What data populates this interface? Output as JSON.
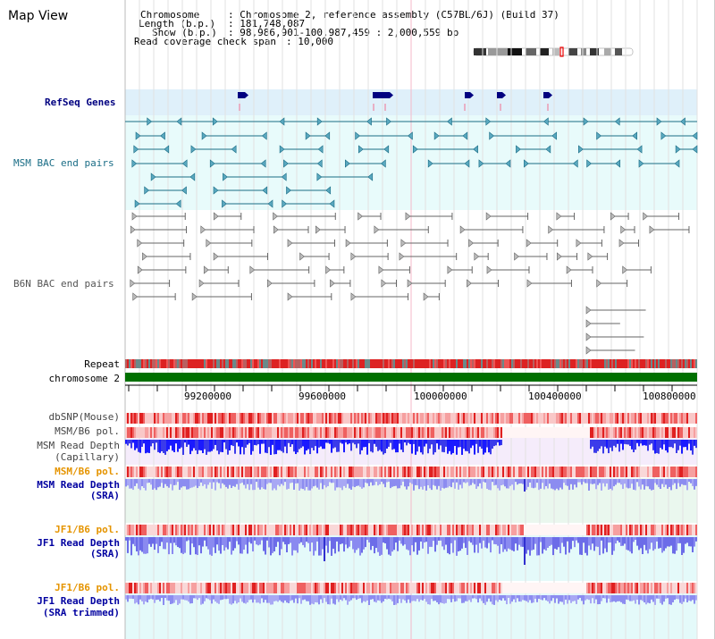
{
  "title": "Map View",
  "info": {
    "chromosome_label": "Chromosome",
    "chromosome_value": ": Chromosome 2, reference assembly (C57BL/6J) (Build 37)",
    "length_label": "Length (b.p.)",
    "length_value": ": 181,748,087",
    "show_label": "Show (b.p.)",
    "show_value": ": 98,986,901-100,987,459 : 2,000,559 bp",
    "coverage_label": "Read coverage check span",
    "coverage_value": ": 10,000"
  },
  "tracks": {
    "refseq": "RefSeq Genes",
    "msm_bac": "MSM BAC end pairs",
    "b6n_bac": "B6N BAC end pairs",
    "repeat": "Repeat",
    "chromosome": "chromosome 2",
    "dbsnp": "dbSNP(Mouse)",
    "msm_b6_pol": "MSM/B6 pol.",
    "msm_depth_cap_1": "MSM Read Depth",
    "msm_depth_cap_2": "(Capillary)",
    "msm_b6_pol_2": "MSM/B6 pol.",
    "msm_depth_sra_1": "MSM Read Depth",
    "msm_depth_sra_2": "(SRA)",
    "jf1_b6_pol": "JF1/B6 pol.",
    "jf1_depth_sra_1": "JF1 Read Depth",
    "jf1_depth_sra_2": "(SRA)",
    "jf1_b6_pol_2": "JF1/B6 pol.",
    "jf1_depth_trim_1": "JF1 Read Depth",
    "jf1_depth_trim_2": "(SRA trimmed)"
  },
  "axis_ticks": [
    "99200000",
    "99600000",
    "100000000",
    "100400000",
    "100800000"
  ],
  "colors": {
    "refseq": "#000080",
    "msm_bac": "#1a6d86",
    "b6n_bac": "#555555",
    "orange_label": "#e59400",
    "blue_label": "#0000a0",
    "chromosome_bar": "#007000",
    "repeat": "#dd2222"
  }
}
